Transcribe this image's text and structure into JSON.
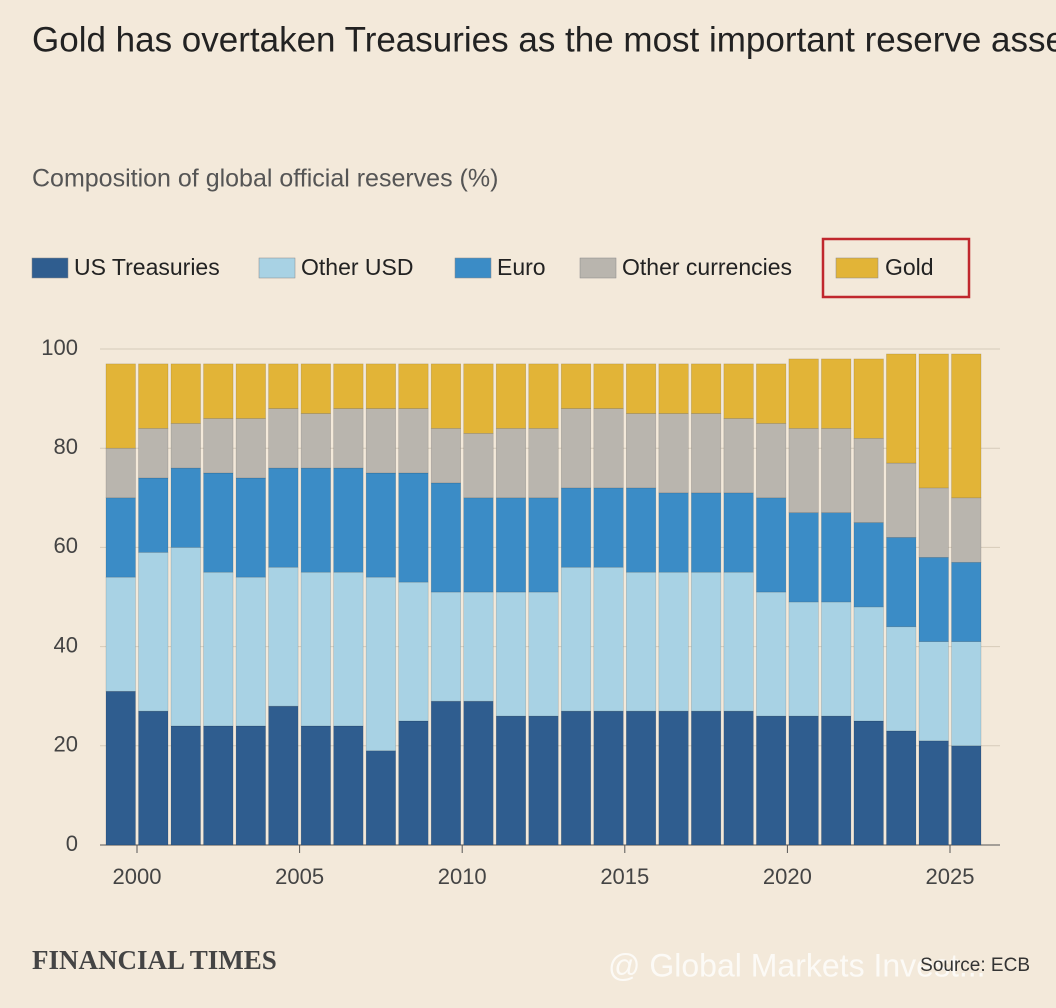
{
  "chart_data": {
    "type": "stacked-bar",
    "title": "Gold has overtaken Treasuries as the most important reserve asset for central banks",
    "subtitle": "Composition of global official reserves (%)",
    "x": [
      2000,
      2001,
      2002,
      2003,
      2004,
      2005,
      2006,
      2007,
      2008,
      2009,
      2010,
      2011,
      2012,
      2013,
      2014,
      2015,
      2016,
      2017,
      2018,
      2019,
      2020,
      2021,
      2022,
      2023,
      2024,
      2025,
      2026
    ],
    "series": [
      {
        "name": "US Treasuries",
        "color": "#2f5d8f",
        "values": [
          31,
          27,
          24,
          24,
          24,
          28,
          24,
          24,
          19,
          25,
          29,
          29,
          26,
          26,
          27,
          27,
          27,
          27,
          27,
          27,
          26,
          26,
          26,
          25,
          23,
          21,
          20
        ]
      },
      {
        "name": "Other USD",
        "color": "#a8d2e4",
        "values": [
          23,
          32,
          36,
          31,
          30,
          28,
          31,
          31,
          35,
          28,
          22,
          22,
          25,
          25,
          29,
          29,
          28,
          28,
          28,
          28,
          25,
          23,
          23,
          23,
          21,
          20,
          21
        ]
      },
      {
        "name": "Euro",
        "color": "#3b8cc6",
        "values": [
          16,
          15,
          16,
          20,
          20,
          20,
          21,
          21,
          21,
          22,
          22,
          19,
          19,
          19,
          16,
          16,
          17,
          16,
          16,
          16,
          19,
          18,
          18,
          17,
          18,
          17,
          16
        ]
      },
      {
        "name": "Other currencies",
        "color": "#b9b5ae",
        "values": [
          10,
          10,
          9,
          11,
          12,
          12,
          11,
          12,
          13,
          13,
          11,
          13,
          14,
          14,
          16,
          16,
          15,
          16,
          16,
          15,
          15,
          17,
          17,
          17,
          15,
          14,
          13
        ]
      },
      {
        "name": "Gold",
        "color": "#e2b437",
        "values": [
          17,
          13,
          12,
          11,
          11,
          9,
          10,
          9,
          9,
          9,
          13,
          14,
          13,
          13,
          9,
          9,
          10,
          10,
          10,
          11,
          12,
          14,
          14,
          16,
          22,
          27,
          29
        ]
      }
    ],
    "xlim": [
      1999,
      2026.5
    ],
    "xticks": [
      2000,
      2005,
      2010,
      2015,
      2020,
      2025
    ],
    "ylim": [
      0,
      100
    ],
    "yticks": [
      0,
      20,
      40,
      60,
      80,
      100
    ],
    "grid": true,
    "publisher": "FINANCIAL TIMES",
    "source": "Source: ECB",
    "watermark": "@ Global Markets Invest..."
  }
}
